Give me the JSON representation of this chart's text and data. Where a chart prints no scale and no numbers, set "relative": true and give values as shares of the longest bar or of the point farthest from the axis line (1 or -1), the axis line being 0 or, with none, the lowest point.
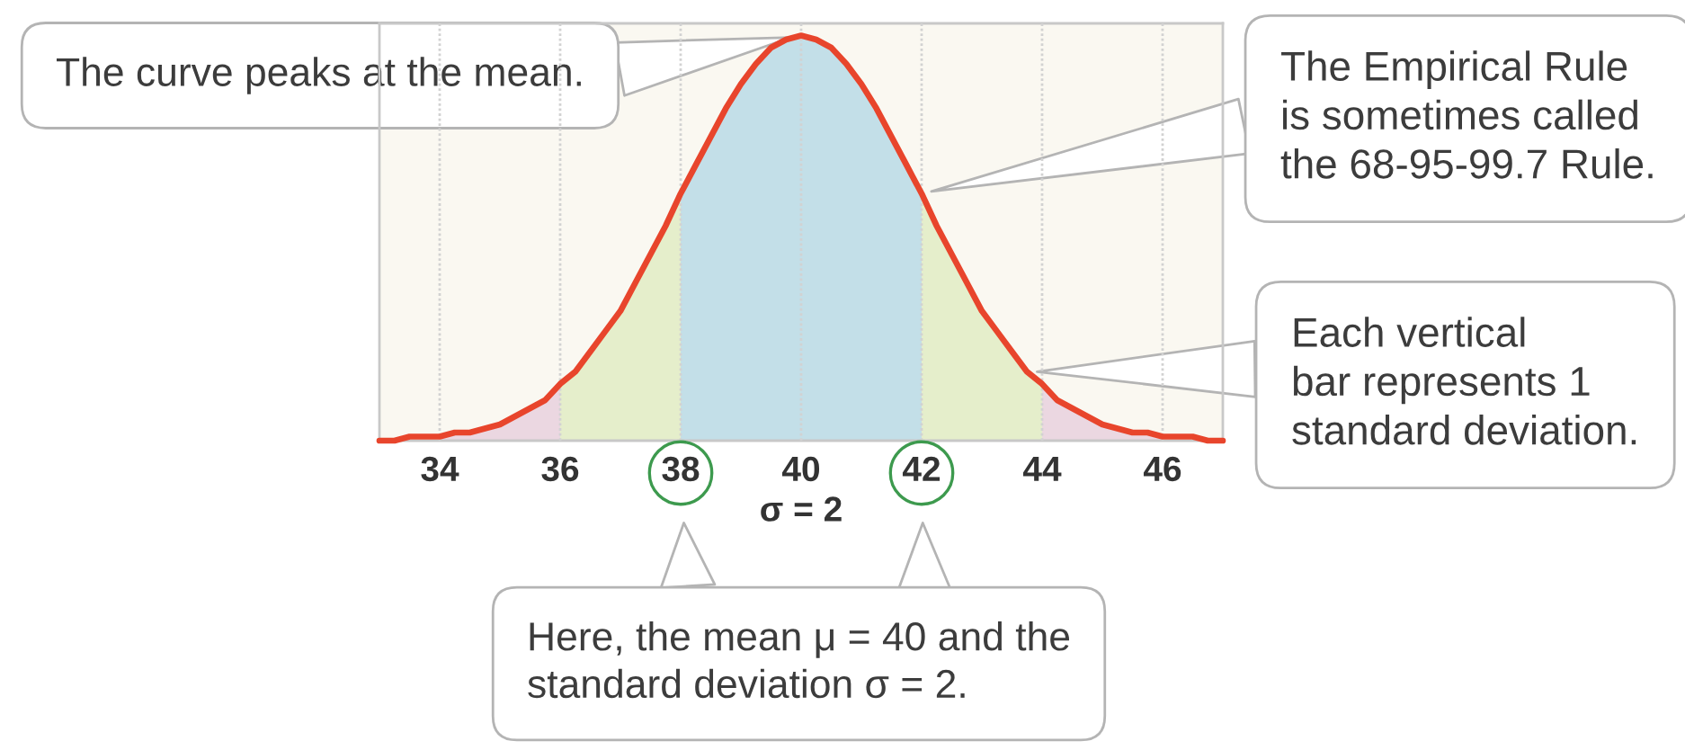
{
  "chart_data": {
    "type": "line",
    "relative": true,
    "x": [
      33,
      33.25,
      33.5,
      33.75,
      34,
      34.25,
      34.5,
      34.75,
      35,
      35.25,
      35.5,
      35.75,
      36,
      36.25,
      36.5,
      36.75,
      37,
      37.25,
      37.5,
      37.75,
      38,
      38.25,
      38.5,
      38.75,
      39,
      39.25,
      39.5,
      39.75,
      40,
      40.25,
      40.5,
      40.75,
      41,
      41.25,
      41.5,
      41.75,
      42,
      42.25,
      42.5,
      42.75,
      43,
      43.25,
      43.5,
      43.75,
      44,
      44.25,
      44.5,
      44.75,
      45,
      45.25,
      45.5,
      45.75,
      46,
      46.25,
      46.5,
      46.75,
      47
    ],
    "series": [
      {
        "type": "area",
        "color": "#c3dfe8",
        "x": [
          38,
          38.25,
          38.5,
          38.75,
          39,
          39.25,
          39.5,
          39.75,
          40,
          40.25,
          40.5,
          40.75,
          41,
          41.25,
          41.5,
          41.75,
          42
        ],
        "values": [
          0.61,
          0.68,
          0.75,
          0.82,
          0.88,
          0.93,
          0.97,
          0.99,
          1,
          0.99,
          0.97,
          0.93,
          0.88,
          0.82,
          0.75,
          0.68,
          0.61
        ]
      },
      {
        "type": "area",
        "color": "#e5eecb",
        "x": [
          36,
          36.25,
          36.5,
          36.75,
          37,
          37.25,
          37.5,
          37.75,
          38
        ],
        "values": [
          0.14,
          0.17,
          0.22,
          0.27,
          0.32,
          0.39,
          0.46,
          0.53,
          0.61
        ]
      },
      {
        "type": "area",
        "color": "#e5eecb",
        "x": [
          42,
          42.25,
          42.5,
          42.75,
          43,
          43.25,
          43.5,
          43.75,
          44
        ],
        "values": [
          0.61,
          0.53,
          0.46,
          0.39,
          0.32,
          0.27,
          0.22,
          0.17,
          0.14
        ]
      },
      {
        "type": "area",
        "color": "#ebd7e1",
        "x": [
          34,
          34.25,
          34.5,
          34.75,
          35,
          35.25,
          35.5,
          35.75,
          36
        ],
        "values": [
          0.01,
          0.02,
          0.02,
          0.03,
          0.04,
          0.06,
          0.08,
          0.1,
          0.14
        ]
      },
      {
        "type": "area",
        "color": "#ebd7e1",
        "x": [
          44,
          44.25,
          44.5,
          44.75,
          45,
          45.25,
          45.5,
          45.75,
          46
        ],
        "values": [
          0.14,
          0.1,
          0.08,
          0.06,
          0.04,
          0.03,
          0.02,
          0.02,
          0.01
        ]
      },
      {
        "color": "#e8452c",
        "values": [
          0.0,
          0.0,
          0.01,
          0.01,
          0.01,
          0.02,
          0.02,
          0.03,
          0.04,
          0.06,
          0.08,
          0.1,
          0.14,
          0.17,
          0.22,
          0.27,
          0.32,
          0.39,
          0.46,
          0.53,
          0.61,
          0.68,
          0.75,
          0.82,
          0.88,
          0.93,
          0.97,
          0.99,
          1,
          0.99,
          0.97,
          0.93,
          0.88,
          0.82,
          0.75,
          0.68,
          0.61,
          0.53,
          0.46,
          0.39,
          0.32,
          0.27,
          0.22,
          0.17,
          0.14,
          0.1,
          0.08,
          0.06,
          0.04,
          0.03,
          0.02,
          0.02,
          0.01,
          0.01,
          0.01,
          0.0,
          0.0
        ]
      }
    ],
    "xlim": [
      33,
      47
    ],
    "xticks": [
      34,
      36,
      38,
      40,
      42,
      44,
      46
    ],
    "xlabel": "σ = 2",
    "grid": "x",
    "tick_labels": "x",
    "annotations": [
      {
        "text": "The curve peaks at the mean.",
        "x": 40,
        "y": 1
      },
      {
        "text": "The Empirical Rule\nis sometimes called\nthe 68-95-99.7 Rule.",
        "x": 42,
        "y": 0.61
      },
      {
        "text": "Each vertical\nbar represents 1\nstandard deviation.",
        "x": 43.75,
        "y": 0.17
      },
      "Here, the mean μ = 40 and the\nstandard deviation σ = 2."
    ]
  }
}
